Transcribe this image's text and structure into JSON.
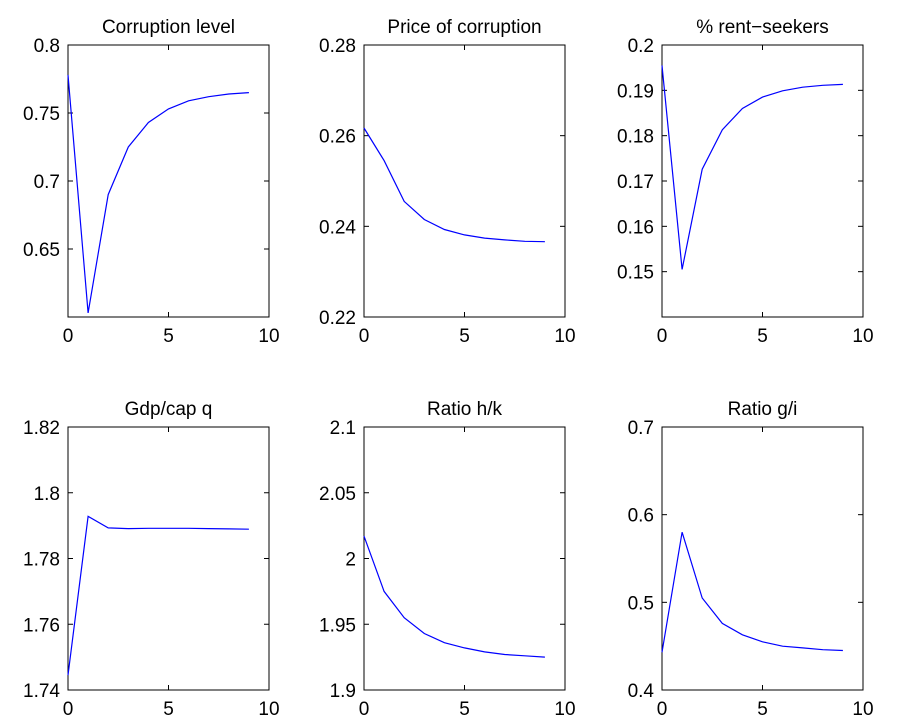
{
  "colors": {
    "line": "#0000ff",
    "axes": "#000000",
    "background": "#ffffff"
  },
  "chart_data": [
    {
      "type": "line",
      "title": "Corruption level",
      "xlabel": "",
      "ylabel": "",
      "xlim": [
        0,
        10
      ],
      "ylim": [
        0.6,
        0.8
      ],
      "xticks": [
        0,
        5,
        10
      ],
      "xtick_labels": [
        "0",
        "5",
        "10"
      ],
      "yticks": [
        0.65,
        0.7,
        0.75,
        0.8
      ],
      "ytick_labels": [
        "0.65",
        "0.7",
        "0.75",
        "0.8"
      ],
      "grid": false,
      "x": [
        0,
        1,
        2,
        3,
        4,
        5,
        6,
        7,
        8,
        9
      ],
      "series": [
        {
          "values": [
            0.778,
            0.603,
            0.69,
            0.725,
            0.743,
            0.753,
            0.759,
            0.762,
            0.764,
            0.765
          ]
        }
      ]
    },
    {
      "type": "line",
      "title": "Price of corruption",
      "xlabel": "",
      "ylabel": "",
      "xlim": [
        0,
        10
      ],
      "ylim": [
        0.22,
        0.28
      ],
      "xticks": [
        0,
        5,
        10
      ],
      "xtick_labels": [
        "0",
        "5",
        "10"
      ],
      "yticks": [
        0.22,
        0.24,
        0.26,
        0.28
      ],
      "ytick_labels": [
        "0.22",
        "0.24",
        "0.26",
        "0.28"
      ],
      "grid": false,
      "x": [
        0,
        1,
        2,
        3,
        4,
        5,
        6,
        7,
        8,
        9
      ],
      "series": [
        {
          "values": [
            0.2617,
            0.2545,
            0.2455,
            0.2415,
            0.2393,
            0.2381,
            0.2374,
            0.237,
            0.2367,
            0.2366
          ]
        }
      ]
    },
    {
      "type": "line",
      "title": "% rent−seekers",
      "xlabel": "",
      "ylabel": "",
      "xlim": [
        0,
        10
      ],
      "ylim": [
        0.14,
        0.2
      ],
      "xticks": [
        0,
        5,
        10
      ],
      "xtick_labels": [
        "0",
        "5",
        "10"
      ],
      "yticks": [
        0.15,
        0.16,
        0.17,
        0.18,
        0.19,
        0.2
      ],
      "ytick_labels": [
        "0.15",
        "0.16",
        "0.17",
        "0.18",
        "0.19",
        "0.2"
      ],
      "grid": false,
      "x": [
        0,
        1,
        2,
        3,
        4,
        5,
        6,
        7,
        8,
        9
      ],
      "series": [
        {
          "values": [
            0.1955,
            0.1505,
            0.1726,
            0.1813,
            0.186,
            0.1885,
            0.1899,
            0.1907,
            0.1911,
            0.1913
          ]
        }
      ]
    },
    {
      "type": "line",
      "title": "Gdp/cap q",
      "xlabel": "",
      "ylabel": "",
      "xlim": [
        0,
        10
      ],
      "ylim": [
        1.74,
        1.82
      ],
      "xticks": [
        0,
        5,
        10
      ],
      "xtick_labels": [
        "0",
        "5",
        "10"
      ],
      "yticks": [
        1.74,
        1.76,
        1.78,
        1.8,
        1.82
      ],
      "ytick_labels": [
        "1.74",
        "1.76",
        "1.78",
        "1.8",
        "1.82"
      ],
      "grid": false,
      "x": [
        0,
        1,
        2,
        3,
        4,
        5,
        6,
        7,
        8,
        9
      ],
      "series": [
        {
          "values": [
            1.7445,
            1.7928,
            1.7893,
            1.7891,
            1.7892,
            1.7892,
            1.7892,
            1.7891,
            1.789,
            1.7889
          ]
        }
      ]
    },
    {
      "type": "line",
      "title": "Ratio h/k",
      "xlabel": "",
      "ylabel": "",
      "xlim": [
        0,
        10
      ],
      "ylim": [
        1.9,
        2.1
      ],
      "xticks": [
        0,
        5,
        10
      ],
      "xtick_labels": [
        "0",
        "5",
        "10"
      ],
      "yticks": [
        1.9,
        1.95,
        2,
        2.05,
        2.1
      ],
      "ytick_labels": [
        "1.9",
        "1.95",
        "2",
        "2.05",
        "2.1"
      ],
      "grid": false,
      "x": [
        0,
        1,
        2,
        3,
        4,
        5,
        6,
        7,
        8,
        9
      ],
      "series": [
        {
          "values": [
            2.017,
            1.975,
            1.955,
            1.943,
            1.936,
            1.932,
            1.929,
            1.927,
            1.926,
            1.925
          ]
        }
      ]
    },
    {
      "type": "line",
      "title": "Ratio g/i",
      "xlabel": "",
      "ylabel": "",
      "xlim": [
        0,
        10
      ],
      "ylim": [
        0.4,
        0.7
      ],
      "xticks": [
        0,
        5,
        10
      ],
      "xtick_labels": [
        "0",
        "5",
        "10"
      ],
      "yticks": [
        0.4,
        0.5,
        0.6,
        0.7
      ],
      "ytick_labels": [
        "0.4",
        "0.5",
        "0.6",
        "0.7"
      ],
      "grid": false,
      "x": [
        0,
        1,
        2,
        3,
        4,
        5,
        6,
        7,
        8,
        9
      ],
      "series": [
        {
          "values": [
            0.443,
            0.58,
            0.505,
            0.476,
            0.463,
            0.455,
            0.45,
            0.448,
            0.446,
            0.445
          ]
        }
      ]
    }
  ]
}
